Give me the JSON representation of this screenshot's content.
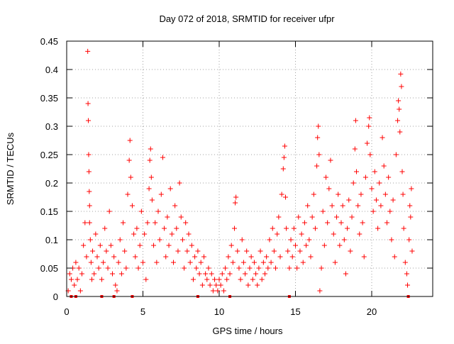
{
  "chart_data": {
    "type": "scatter",
    "title": "Day 072 of 2018, SRMTID for receiver ufpr",
    "xlabel": "GPS time / hours",
    "ylabel": "SRMTID / TECUs",
    "xlim": [
      0,
      24
    ],
    "ylim": [
      0,
      0.45
    ],
    "x_ticks": [
      "0",
      "5",
      "10",
      "15",
      "20"
    ],
    "y_ticks": [
      "0",
      "0.05",
      "0.1",
      "0.15",
      "0.2",
      "0.25",
      "0.3",
      "0.35",
      "0.4",
      "0.45"
    ],
    "grid": true,
    "marker": "plus",
    "color": "#ff0000",
    "legend": "none",
    "data_gaps_x": [
      0.3,
      0.6,
      2.3,
      3.1,
      4.3,
      8.6,
      10.7,
      14.6,
      22.4
    ],
    "series": [
      {
        "points": [
          [
            0.1,
            0.01
          ],
          [
            0.2,
            0.04
          ],
          [
            0.3,
            0.03
          ],
          [
            0.4,
            0.05
          ],
          [
            0.5,
            0.02
          ],
          [
            0.6,
            0.06
          ],
          [
            0.7,
            0.03
          ],
          [
            0.8,
            0.05
          ],
          [
            0.9,
            0.01
          ],
          [
            1.0,
            0.04
          ],
          [
            1.1,
            0.09
          ],
          [
            1.2,
            0.13
          ],
          [
            1.3,
            0.07
          ],
          [
            1.38,
            0.432
          ],
          [
            1.4,
            0.34
          ],
          [
            1.42,
            0.31
          ],
          [
            1.44,
            0.25
          ],
          [
            1.46,
            0.22
          ],
          [
            1.48,
            0.185
          ],
          [
            1.5,
            0.16
          ],
          [
            1.5,
            0.13
          ],
          [
            1.55,
            0.1
          ],
          [
            1.6,
            0.06
          ],
          [
            1.65,
            0.03
          ],
          [
            1.7,
            0.08
          ],
          [
            1.8,
            0.04
          ],
          [
            1.9,
            0.11
          ],
          [
            2.0,
            0.07
          ],
          [
            2.1,
            0.05
          ],
          [
            2.2,
            0.09
          ],
          [
            2.3,
            0.03
          ],
          [
            2.4,
            0.06
          ],
          [
            2.5,
            0.12
          ],
          [
            2.6,
            0.08
          ],
          [
            2.7,
            0.05
          ],
          [
            2.8,
            0.15
          ],
          [
            2.9,
            0.09
          ],
          [
            3.0,
            0.04
          ],
          [
            3.1,
            0.07
          ],
          [
            3.2,
            0.02
          ],
          [
            3.3,
            0.01
          ],
          [
            3.4,
            0.06
          ],
          [
            3.5,
            0.1
          ],
          [
            3.6,
            0.04
          ],
          [
            3.7,
            0.13
          ],
          [
            3.8,
            0.08
          ],
          [
            3.9,
            0.05
          ],
          [
            4.0,
            0.18
          ],
          [
            4.1,
            0.24
          ],
          [
            4.15,
            0.275
          ],
          [
            4.2,
            0.21
          ],
          [
            4.3,
            0.16
          ],
          [
            4.4,
            0.11
          ],
          [
            4.5,
            0.07
          ],
          [
            4.6,
            0.12
          ],
          [
            4.7,
            0.05
          ],
          [
            4.8,
            0.09
          ],
          [
            4.9,
            0.15
          ],
          [
            5.0,
            0.06
          ],
          [
            5.1,
            0.11
          ],
          [
            5.2,
            0.03
          ],
          [
            5.3,
            0.13
          ],
          [
            5.4,
            0.19
          ],
          [
            5.45,
            0.24
          ],
          [
            5.5,
            0.26
          ],
          [
            5.55,
            0.21
          ],
          [
            5.6,
            0.17
          ],
          [
            5.7,
            0.09
          ],
          [
            5.8,
            0.13
          ],
          [
            5.9,
            0.06
          ],
          [
            6.0,
            0.15
          ],
          [
            6.1,
            0.1
          ],
          [
            6.2,
            0.18
          ],
          [
            6.3,
            0.245
          ],
          [
            6.4,
            0.12
          ],
          [
            6.5,
            0.07
          ],
          [
            6.6,
            0.14
          ],
          [
            6.7,
            0.09
          ],
          [
            6.8,
            0.19
          ],
          [
            6.9,
            0.11
          ],
          [
            7.0,
            0.06
          ],
          [
            7.1,
            0.16
          ],
          [
            7.2,
            0.12
          ],
          [
            7.3,
            0.08
          ],
          [
            7.4,
            0.2
          ],
          [
            7.5,
            0.14
          ],
          [
            7.6,
            0.1
          ],
          [
            7.7,
            0.05
          ],
          [
            7.8,
            0.13
          ],
          [
            7.9,
            0.08
          ],
          [
            8.0,
            0.11
          ],
          [
            8.1,
            0.06
          ],
          [
            8.2,
            0.09
          ],
          [
            8.3,
            0.03
          ],
          [
            8.4,
            0.07
          ],
          [
            8.5,
            0.05
          ],
          [
            8.6,
            0.08
          ],
          [
            8.7,
            0.04
          ],
          [
            8.8,
            0.06
          ],
          [
            8.9,
            0.02
          ],
          [
            9.0,
            0.07
          ],
          [
            9.1,
            0.04
          ],
          [
            9.2,
            0.03
          ],
          [
            9.3,
            0.05
          ],
          [
            9.4,
            0.02
          ],
          [
            9.5,
            0.04
          ],
          [
            9.6,
            0.01
          ],
          [
            9.7,
            0.03
          ],
          [
            9.8,
            0.02
          ],
          [
            9.9,
            0.01
          ],
          [
            10.0,
            0.03
          ],
          [
            10.1,
            0.02
          ],
          [
            10.2,
            0.04
          ],
          [
            10.3,
            0.01
          ],
          [
            10.4,
            0.05
          ],
          [
            10.5,
            0.03
          ],
          [
            10.6,
            0.07
          ],
          [
            10.7,
            0.04
          ],
          [
            10.8,
            0.09
          ],
          [
            10.9,
            0.06
          ],
          [
            11.0,
            0.12
          ],
          [
            11.05,
            0.165
          ],
          [
            11.1,
            0.175
          ],
          [
            11.2,
            0.08
          ],
          [
            11.3,
            0.05
          ],
          [
            11.4,
            0.03
          ],
          [
            11.5,
            0.1
          ],
          [
            11.6,
            0.06
          ],
          [
            11.7,
            0.04
          ],
          [
            11.8,
            0.08
          ],
          [
            11.9,
            0.02
          ],
          [
            12.0,
            0.05
          ],
          [
            12.1,
            0.07
          ],
          [
            12.2,
            0.03
          ],
          [
            12.3,
            0.06
          ],
          [
            12.4,
            0.04
          ],
          [
            12.5,
            0.02
          ],
          [
            12.6,
            0.05
          ],
          [
            12.7,
            0.08
          ],
          [
            12.8,
            0.03
          ],
          [
            12.9,
            0.06
          ],
          [
            13.0,
            0.04
          ],
          [
            13.1,
            0.07
          ],
          [
            13.2,
            0.05
          ],
          [
            13.3,
            0.1
          ],
          [
            13.4,
            0.06
          ],
          [
            13.5,
            0.12
          ],
          [
            13.6,
            0.08
          ],
          [
            13.7,
            0.05
          ],
          [
            13.8,
            0.11
          ],
          [
            13.9,
            0.14
          ],
          [
            14.0,
            0.07
          ],
          [
            14.1,
            0.18
          ],
          [
            14.2,
            0.225
          ],
          [
            14.25,
            0.245
          ],
          [
            14.3,
            0.265
          ],
          [
            14.35,
            0.175
          ],
          [
            14.4,
            0.12
          ],
          [
            14.5,
            0.08
          ],
          [
            14.6,
            0.05
          ],
          [
            14.7,
            0.1
          ],
          [
            14.8,
            0.07
          ],
          [
            14.9,
            0.12
          ],
          [
            15.0,
            0.09
          ],
          [
            15.1,
            0.05
          ],
          [
            15.2,
            0.14
          ],
          [
            15.3,
            0.08
          ],
          [
            15.4,
            0.11
          ],
          [
            15.5,
            0.06
          ],
          [
            15.6,
            0.13
          ],
          [
            15.7,
            0.09
          ],
          [
            15.8,
            0.16
          ],
          [
            15.9,
            0.1
          ],
          [
            16.0,
            0.07
          ],
          [
            16.1,
            0.14
          ],
          [
            16.2,
            0.18
          ],
          [
            16.3,
            0.12
          ],
          [
            16.4,
            0.23
          ],
          [
            16.45,
            0.28
          ],
          [
            16.5,
            0.3
          ],
          [
            16.55,
            0.25
          ],
          [
            16.6,
            0.01
          ],
          [
            16.7,
            0.05
          ],
          [
            16.8,
            0.15
          ],
          [
            16.9,
            0.09
          ],
          [
            17.0,
            0.21
          ],
          [
            17.1,
            0.13
          ],
          [
            17.2,
            0.19
          ],
          [
            17.3,
            0.24
          ],
          [
            17.4,
            0.16
          ],
          [
            17.5,
            0.11
          ],
          [
            17.6,
            0.06
          ],
          [
            17.7,
            0.14
          ],
          [
            17.8,
            0.18
          ],
          [
            17.9,
            0.09
          ],
          [
            18.0,
            0.13
          ],
          [
            18.1,
            0.16
          ],
          [
            18.2,
            0.1
          ],
          [
            18.3,
            0.04
          ],
          [
            18.4,
            0.12
          ],
          [
            18.5,
            0.17
          ],
          [
            18.6,
            0.08
          ],
          [
            18.7,
            0.14
          ],
          [
            18.8,
            0.2
          ],
          [
            18.9,
            0.26
          ],
          [
            18.95,
            0.31
          ],
          [
            19.0,
            0.22
          ],
          [
            19.1,
            0.16
          ],
          [
            19.2,
            0.11
          ],
          [
            19.3,
            0.18
          ],
          [
            19.4,
            0.13
          ],
          [
            19.5,
            0.07
          ],
          [
            19.6,
            0.21
          ],
          [
            19.7,
            0.27
          ],
          [
            19.8,
            0.3
          ],
          [
            19.85,
            0.315
          ],
          [
            19.9,
            0.25
          ],
          [
            20.0,
            0.19
          ],
          [
            20.1,
            0.15
          ],
          [
            20.2,
            0.22
          ],
          [
            20.3,
            0.17
          ],
          [
            20.4,
            0.12
          ],
          [
            20.5,
            0.2
          ],
          [
            20.6,
            0.16
          ],
          [
            20.7,
            0.28
          ],
          [
            20.8,
            0.23
          ],
          [
            20.9,
            0.18
          ],
          [
            21.0,
            0.13
          ],
          [
            21.1,
            0.21
          ],
          [
            21.2,
            0.15
          ],
          [
            21.3,
            0.1
          ],
          [
            21.4,
            0.17
          ],
          [
            21.5,
            0.07
          ],
          [
            21.6,
            0.25
          ],
          [
            21.7,
            0.31
          ],
          [
            21.75,
            0.345
          ],
          [
            21.8,
            0.33
          ],
          [
            21.85,
            0.29
          ],
          [
            21.9,
            0.392
          ],
          [
            21.95,
            0.37
          ],
          [
            22.0,
            0.22
          ],
          [
            22.05,
            0.18
          ],
          [
            22.1,
            0.12
          ],
          [
            22.2,
            0.06
          ],
          [
            22.3,
            0.04
          ],
          [
            22.35,
            0.02
          ],
          [
            22.45,
            0.1
          ],
          [
            22.5,
            0.16
          ],
          [
            22.55,
            0.14
          ],
          [
            22.6,
            0.19
          ],
          [
            22.65,
            0.08
          ]
        ]
      }
    ]
  }
}
